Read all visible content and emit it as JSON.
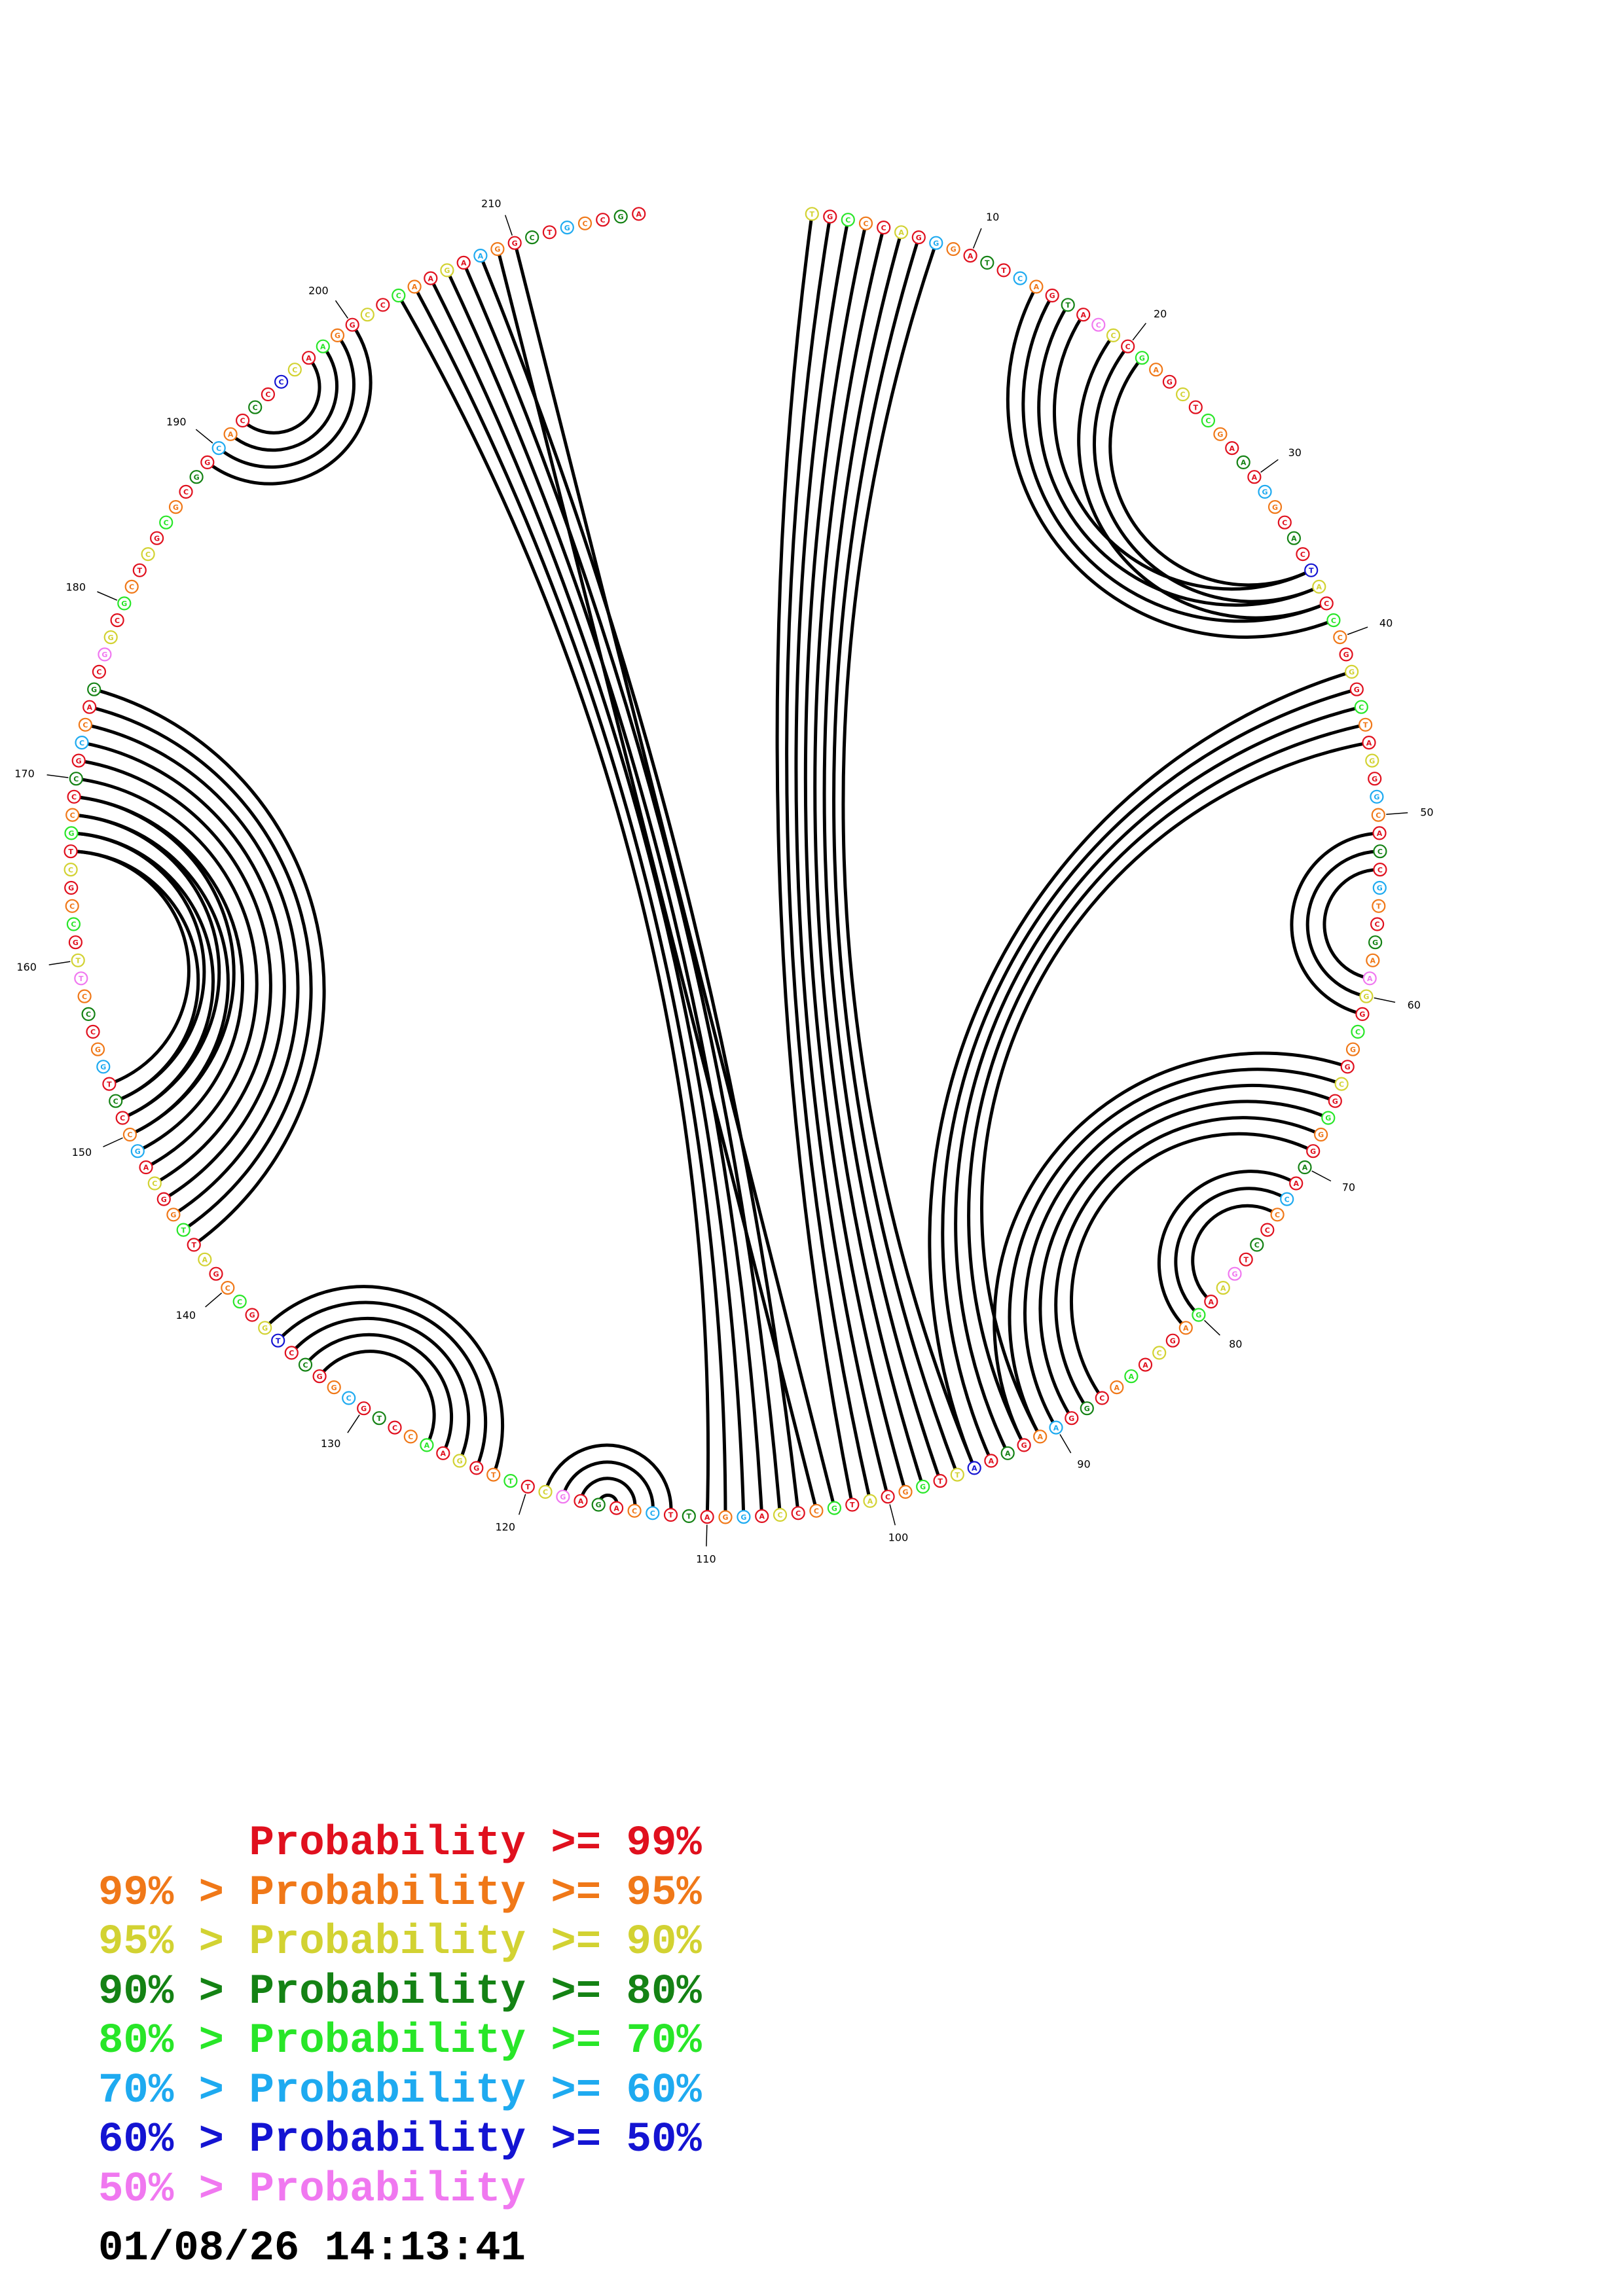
{
  "sequence": "TGCCCAGGGATTCAGTACCCGAGCTCGAAAGGCACTACCCGGGCTAGGGCACCGTCGAAGGCGGCGGGGAACCCCTGAAGAGCAAACGGAAGAAATTGGCATGCCCAGGATTCCAGAGCTTTGGAACCTGCGGCCTGGCCGATTGGCAGCCCTGGCCCTTGCCGCTGCCCGCCAGCGGCGCTCGCGCGGCACCCCCAAGGCCCAAGAAGGCTGCCGA",
  "tick_labels": [
    "10",
    "20",
    "30",
    "40",
    "50",
    "60",
    "70",
    "80",
    "90",
    "100",
    "110",
    "120",
    "130",
    "140",
    "150",
    "160",
    "170",
    "180",
    "190",
    "200",
    "210"
  ],
  "helices": [
    {
      "i": 1,
      "j": 102,
      "len": 8
    },
    {
      "i": 14,
      "j": 39,
      "len": 4
    },
    {
      "i": 19,
      "j": 38,
      "len": 3
    },
    {
      "i": 42,
      "j": 95,
      "len": 5
    },
    {
      "i": 51,
      "j": 61,
      "len": 3
    },
    {
      "i": 64,
      "j": 92,
      "len": 6
    },
    {
      "i": 71,
      "j": 81,
      "len": 3
    },
    {
      "i": 103,
      "j": 210,
      "len": 8
    },
    {
      "i": 112,
      "j": 119,
      "len": 4
    },
    {
      "i": 122,
      "j": 137,
      "len": 5
    },
    {
      "i": 143,
      "j": 175,
      "len": 10
    },
    {
      "i": 150,
      "j": 169,
      "len": 4
    },
    {
      "i": 189,
      "j": 200,
      "len": 4
    }
  ],
  "legend": [
    {
      "text": "      Probability >= 99%",
      "color": "#e0101e"
    },
    {
      "text": "99% > Probability >= 95%",
      "color": "#f07818"
    },
    {
      "text": "95% > Probability >= 90%",
      "color": "#d2d232"
    },
    {
      "text": "90% > Probability >= 80%",
      "color": "#148214"
    },
    {
      "text": "80% > Probability >= 70%",
      "color": "#28e628"
    },
    {
      "text": "70% > Probability >= 60%",
      "color": "#1eaaf0"
    },
    {
      "text": "60% > Probability >= 50%",
      "color": "#1414d2"
    },
    {
      "text": "50% > Probability",
      "color": "#f078f0"
    }
  ],
  "timestamp": "01/08/26 14:13:41"
}
